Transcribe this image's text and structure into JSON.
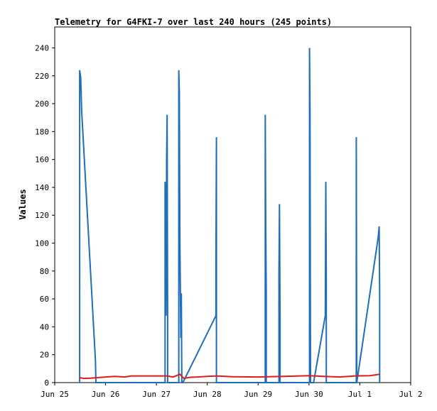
{
  "chart_data": {
    "type": "line",
    "title": "Telemetry for G4FKI-7 over last 240 hours (245 points)",
    "xlabel": "",
    "ylabel": "Values",
    "ylim": [
      0,
      255
    ],
    "xlim": [
      0,
      7
    ],
    "grid": false,
    "x_ticks": [
      {
        "x": 0,
        "label": "Jun 25"
      },
      {
        "x": 1,
        "label": "Jun 26"
      },
      {
        "x": 2,
        "label": "Jun 27"
      },
      {
        "x": 3,
        "label": "Jun 28"
      },
      {
        "x": 4,
        "label": "Jun 29"
      },
      {
        "x": 5,
        "label": "Jun 30"
      },
      {
        "x": 6,
        "label": "Jul 1"
      },
      {
        "x": 7,
        "label": "Jul 2"
      }
    ],
    "y_ticks": [
      0,
      20,
      40,
      60,
      80,
      100,
      120,
      140,
      160,
      180,
      200,
      220,
      240
    ],
    "series": [
      {
        "color": "#1e6ebf",
        "points": [
          [
            0.49,
            0
          ],
          [
            0.49,
            224
          ],
          [
            0.51,
            219
          ],
          [
            0.52,
            208
          ],
          [
            0.53,
            195
          ],
          [
            0.8,
            16
          ],
          [
            0.81,
            0
          ],
          [
            2.17,
            0
          ],
          [
            2.17,
            144
          ],
          [
            2.19,
            48
          ],
          [
            2.2,
            160
          ],
          [
            2.21,
            192
          ],
          [
            2.22,
            48
          ],
          [
            2.22,
            0
          ],
          [
            2.44,
            0
          ],
          [
            2.44,
            224
          ],
          [
            2.45,
            208
          ],
          [
            2.46,
            104
          ],
          [
            2.48,
            32
          ],
          [
            2.49,
            64
          ],
          [
            2.5,
            0
          ],
          [
            2.52,
            0
          ],
          [
            3.17,
            48
          ],
          [
            3.17,
            88
          ],
          [
            3.18,
            176
          ],
          [
            3.18,
            0
          ],
          [
            4.14,
            0
          ],
          [
            4.14,
            192
          ],
          [
            4.15,
            112
          ],
          [
            4.16,
            64
          ],
          [
            4.16,
            0
          ],
          [
            4.41,
            0
          ],
          [
            4.41,
            80
          ],
          [
            4.42,
            128
          ],
          [
            4.43,
            48
          ],
          [
            4.43,
            0
          ],
          [
            5.01,
            0
          ],
          [
            5.01,
            240
          ],
          [
            5.02,
            192
          ],
          [
            5.03,
            0
          ],
          [
            5.09,
            0
          ],
          [
            5.32,
            48
          ],
          [
            5.33,
            144
          ],
          [
            5.34,
            72
          ],
          [
            5.34,
            0
          ],
          [
            5.93,
            0
          ],
          [
            5.93,
            176
          ],
          [
            5.94,
            0
          ],
          [
            6.36,
            104
          ],
          [
            6.38,
            112
          ],
          [
            6.39,
            64
          ],
          [
            6.39,
            8
          ],
          [
            6.39,
            0
          ]
        ]
      },
      {
        "color": "#e21b1b",
        "points": [
          [
            0.49,
            3.5
          ],
          [
            0.58,
            3
          ],
          [
            0.7,
            3.2
          ],
          [
            0.82,
            3.5
          ],
          [
            1.0,
            4
          ],
          [
            1.18,
            4.5
          ],
          [
            1.38,
            4
          ],
          [
            1.5,
            4.8
          ],
          [
            2.2,
            4.8
          ],
          [
            2.33,
            4
          ],
          [
            2.46,
            6
          ],
          [
            2.54,
            3
          ],
          [
            2.66,
            3.8
          ],
          [
            2.8,
            4
          ],
          [
            3.0,
            4.5
          ],
          [
            3.18,
            4.8
          ],
          [
            3.5,
            4.2
          ],
          [
            4.0,
            4
          ],
          [
            4.5,
            4.5
          ],
          [
            5.0,
            5
          ],
          [
            5.3,
            4.5
          ],
          [
            5.6,
            4
          ],
          [
            5.9,
            4.8
          ],
          [
            6.2,
            5
          ],
          [
            6.39,
            6
          ]
        ]
      }
    ]
  }
}
